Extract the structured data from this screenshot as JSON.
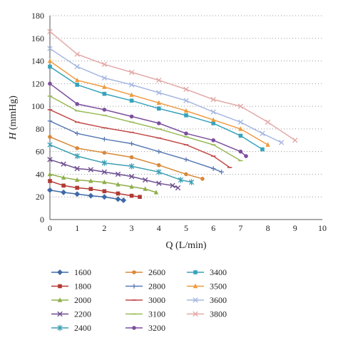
{
  "chart_data": {
    "type": "line",
    "xlabel": "Q (L/min)",
    "ylabel_italic": "H",
    "ylabel_unit": " (mmHg)",
    "xlim": [
      0,
      10
    ],
    "ylim": [
      0,
      180
    ],
    "xticks": [
      0,
      1,
      2,
      3,
      4,
      5,
      6,
      7,
      8,
      9,
      10
    ],
    "yticks": [
      0,
      20,
      40,
      60,
      80,
      100,
      120,
      140,
      160,
      180
    ],
    "grid": "horizontal-dotted",
    "legend_position": "bottom",
    "series": [
      {
        "name": "1600",
        "color": "#3f6aa8",
        "marker": "diamond",
        "points": [
          [
            0,
            26
          ],
          [
            0.5,
            24
          ],
          [
            1,
            22.5
          ],
          [
            1.5,
            21
          ],
          [
            2,
            20
          ],
          [
            2.5,
            18
          ],
          [
            2.7,
            17
          ]
        ]
      },
      {
        "name": "1800",
        "color": "#b23a34",
        "marker": "square",
        "points": [
          [
            0,
            34
          ],
          [
            0.5,
            30
          ],
          [
            1,
            28
          ],
          [
            1.5,
            27
          ],
          [
            2,
            25
          ],
          [
            2.5,
            23
          ],
          [
            3,
            21
          ],
          [
            3.3,
            20
          ]
        ]
      },
      {
        "name": "2000",
        "color": "#8fae4a",
        "marker": "triangle",
        "points": [
          [
            0,
            40
          ],
          [
            0.5,
            37
          ],
          [
            1,
            35
          ],
          [
            1.5,
            34
          ],
          [
            2,
            33
          ],
          [
            2.5,
            31
          ],
          [
            3,
            29
          ],
          [
            3.5,
            27
          ],
          [
            3.9,
            24
          ]
        ]
      },
      {
        "name": "2200",
        "color": "#6e4e8f",
        "marker": "x",
        "points": [
          [
            0,
            53
          ],
          [
            0.5,
            49
          ],
          [
            1,
            45
          ],
          [
            1.5,
            44
          ],
          [
            2,
            42
          ],
          [
            2.5,
            40
          ],
          [
            3,
            38
          ],
          [
            3.5,
            35
          ],
          [
            4,
            32
          ],
          [
            4.5,
            30
          ],
          [
            4.7,
            28
          ]
        ]
      },
      {
        "name": "2400",
        "color": "#3d9fb4",
        "marker": "asterisk",
        "points": [
          [
            0,
            66
          ],
          [
            1,
            56
          ],
          [
            2,
            50
          ],
          [
            3,
            47
          ],
          [
            4,
            42
          ],
          [
            4.8,
            35
          ],
          [
            5.2,
            33
          ]
        ]
      },
      {
        "name": "2600",
        "color": "#d8893a",
        "marker": "circle",
        "points": [
          [
            0,
            73
          ],
          [
            1,
            63
          ],
          [
            2,
            59
          ],
          [
            3,
            55
          ],
          [
            4,
            48
          ],
          [
            5,
            40
          ],
          [
            5.6,
            36
          ]
        ]
      },
      {
        "name": "2800",
        "color": "#5a7bb5",
        "marker": "plus",
        "points": [
          [
            0,
            87
          ],
          [
            1,
            76
          ],
          [
            2,
            71
          ],
          [
            3,
            67
          ],
          [
            4,
            60
          ],
          [
            5,
            53
          ],
          [
            6,
            45
          ],
          [
            6.3,
            42
          ]
        ]
      },
      {
        "name": "3000",
        "color": "#c24a48",
        "marker": "dash",
        "points": [
          [
            0,
            97
          ],
          [
            1,
            86
          ],
          [
            2,
            81
          ],
          [
            3,
            77
          ],
          [
            4,
            72
          ],
          [
            5,
            66
          ],
          [
            6,
            56
          ],
          [
            6.6,
            46
          ]
        ]
      },
      {
        "name": "3100",
        "color": "#9bbb59",
        "marker": "dash",
        "points": [
          [
            0,
            109
          ],
          [
            1,
            96
          ],
          [
            2,
            92
          ],
          [
            3,
            86
          ],
          [
            4,
            80
          ],
          [
            5,
            73
          ],
          [
            6,
            66
          ],
          [
            7,
            52
          ]
        ]
      },
      {
        "name": "3200",
        "color": "#7b4f9e",
        "marker": "circle",
        "points": [
          [
            0,
            120
          ],
          [
            1,
            102
          ],
          [
            2,
            97
          ],
          [
            3,
            91
          ],
          [
            4,
            85
          ],
          [
            5,
            76
          ],
          [
            6,
            70
          ],
          [
            7,
            60
          ],
          [
            7.2,
            56
          ]
        ]
      },
      {
        "name": "3400",
        "color": "#36a3bb",
        "marker": "square",
        "points": [
          [
            0,
            135
          ],
          [
            1,
            119
          ],
          [
            2,
            111
          ],
          [
            3,
            105
          ],
          [
            4,
            98
          ],
          [
            5,
            92
          ],
          [
            6,
            85
          ],
          [
            7,
            74
          ],
          [
            7.8,
            62
          ]
        ]
      },
      {
        "name": "3500",
        "color": "#f09a3e",
        "marker": "triangle",
        "points": [
          [
            0,
            140
          ],
          [
            1,
            123
          ],
          [
            2,
            117
          ],
          [
            3,
            110
          ],
          [
            4,
            103
          ],
          [
            5,
            96
          ],
          [
            6,
            88
          ],
          [
            7,
            80
          ],
          [
            8,
            66
          ]
        ]
      },
      {
        "name": "3600",
        "color": "#a6b8e0",
        "marker": "x",
        "points": [
          [
            0,
            151
          ],
          [
            1,
            135
          ],
          [
            2,
            125
          ],
          [
            3,
            119
          ],
          [
            4,
            112
          ],
          [
            5,
            105
          ],
          [
            6,
            95
          ],
          [
            7,
            86
          ],
          [
            7.8,
            76
          ],
          [
            8.5,
            68
          ]
        ]
      },
      {
        "name": "3800",
        "color": "#e2aaa8",
        "marker": "x",
        "points": [
          [
            0,
            166
          ],
          [
            1,
            146
          ],
          [
            2,
            137
          ],
          [
            3,
            130
          ],
          [
            4,
            123
          ],
          [
            5,
            115
          ],
          [
            6,
            106
          ],
          [
            7,
            100
          ],
          [
            8,
            86
          ],
          [
            9,
            70
          ]
        ]
      }
    ]
  }
}
